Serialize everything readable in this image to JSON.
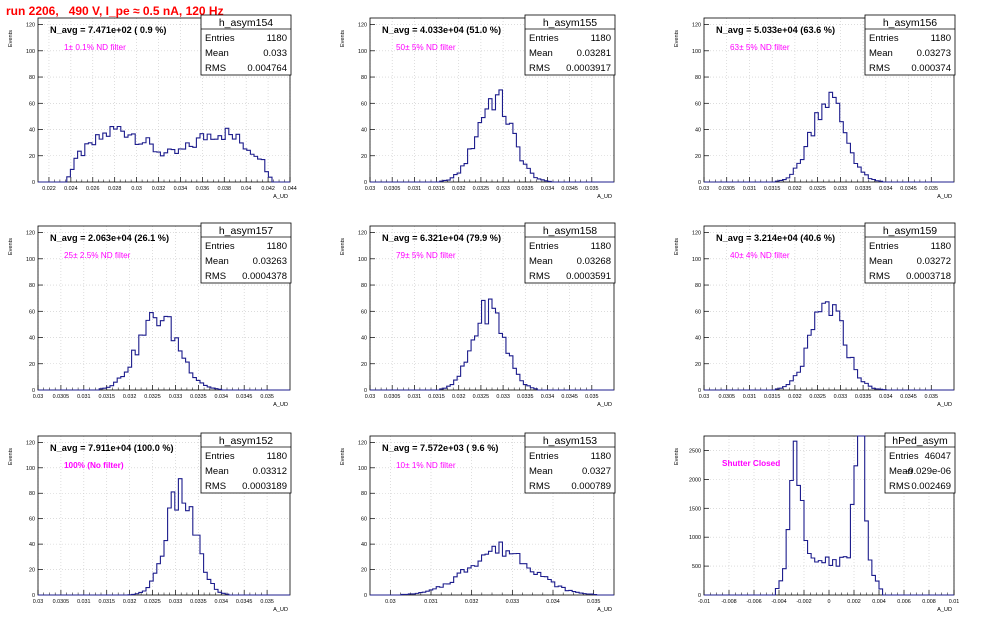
{
  "page": {
    "title": "run 2206,   490 V, I_pe ≈ 0.5 nA, 120 Hz"
  },
  "common": {
    "ylabel": "Events",
    "xlabel": "A_UD",
    "line_color": "#1c1c8c",
    "title_color": "#ff0000",
    "annotation_color": "#ff00ff"
  },
  "chart_data": [
    {
      "type": "histogram",
      "name": "h_asym154",
      "stats": {
        "Entries": "1180",
        "Mean": "0.033",
        "RMS": "0.004764"
      },
      "header": "N_avg = 7.471e+02 ( 0.9 %)",
      "annotation": "1± 0.1% ND filter",
      "xlim": [
        0.021,
        0.044
      ],
      "ylim": [
        0,
        125
      ],
      "xticks": [
        0.022,
        0.024,
        0.026,
        0.028,
        0.03,
        0.032,
        0.034,
        0.036,
        0.038,
        0.04,
        0.042,
        0.044
      ],
      "xtick_labels": [
        "0.022",
        "0.024",
        "0.026",
        "0.028",
        "0.03",
        "0.032",
        "0.034",
        "0.036",
        "0.038",
        "0.04",
        "0.042",
        "0.044"
      ],
      "yticks": [
        0,
        20,
        40,
        60,
        80,
        100,
        120
      ],
      "ytick_labels": [
        "0",
        "20",
        "40",
        "60",
        "80",
        "100",
        "120"
      ],
      "curve": {
        "shape": "bimodal_wide",
        "centers": [
          0.0285,
          0.0375
        ],
        "widths": [
          0.0023,
          0.0023
        ],
        "peaks": [
          26,
          24
        ],
        "baseline": 14,
        "range": [
          0.0235,
          0.0425
        ]
      }
    },
    {
      "type": "histogram",
      "name": "h_asym155",
      "stats": {
        "Entries": "1180",
        "Mean": "0.03281",
        "RMS": "0.0003917"
      },
      "header": "N_avg = 4.033e+04 (51.0 %)",
      "annotation": "50± 5% ND filter",
      "xlim": [
        0.03,
        0.0355
      ],
      "ylim": [
        0,
        125
      ],
      "xticks": [
        0.03,
        0.0305,
        0.031,
        0.0315,
        0.032,
        0.0325,
        0.033,
        0.0335,
        0.034,
        0.0345,
        0.035
      ],
      "xtick_labels": [
        "0.03",
        "0.0305",
        "0.031",
        "0.0315",
        "0.032",
        "0.0325",
        "0.033",
        "0.0335",
        "0.034",
        "0.0345",
        "0.035"
      ],
      "yticks": [
        0,
        20,
        40,
        60,
        80,
        100,
        120
      ],
      "ytick_labels": [
        "0",
        "20",
        "40",
        "60",
        "80",
        "100",
        "120"
      ],
      "curve": {
        "shape": "gauss",
        "centers": [
          0.03281
        ],
        "widths": [
          0.00039
        ],
        "peaks": [
          64
        ],
        "range": [
          0.0316,
          0.0341
        ]
      }
    },
    {
      "type": "histogram",
      "name": "h_asym156",
      "stats": {
        "Entries": "1180",
        "Mean": "0.03273",
        "RMS": "0.000374"
      },
      "header": "N_avg = 5.033e+04 (63.6 %)",
      "annotation": "63± 5% ND filter",
      "xlim": [
        0.03,
        0.0355
      ],
      "ylim": [
        0,
        125
      ],
      "xticks": [
        0.03,
        0.0305,
        0.031,
        0.0315,
        0.032,
        0.0325,
        0.033,
        0.0335,
        0.034,
        0.0345,
        0.035
      ],
      "xtick_labels": [
        "0.03",
        "0.0305",
        "0.031",
        "0.0315",
        "0.032",
        "0.0325",
        "0.033",
        "0.0335",
        "0.034",
        "0.0345",
        "0.035"
      ],
      "yticks": [
        0,
        20,
        40,
        60,
        80,
        100,
        120
      ],
      "ytick_labels": [
        "0",
        "20",
        "40",
        "60",
        "80",
        "100",
        "120"
      ],
      "curve": {
        "shape": "gauss",
        "centers": [
          0.03273
        ],
        "widths": [
          0.00037
        ],
        "peaks": [
          64
        ],
        "range": [
          0.0316,
          0.0339
        ]
      }
    },
    {
      "type": "histogram",
      "name": "h_asym157",
      "stats": {
        "Entries": "1180",
        "Mean": "0.03263",
        "RMS": "0.0004378"
      },
      "header": "N_avg = 2.063e+04 (26.1 %)",
      "annotation": "25± 2.5% ND filter",
      "xlim": [
        0.03,
        0.0355
      ],
      "ylim": [
        0,
        125
      ],
      "xticks": [
        0.03,
        0.0305,
        0.031,
        0.0315,
        0.032,
        0.0325,
        0.033,
        0.0335,
        0.034,
        0.0345,
        0.035
      ],
      "xtick_labels": [
        "0.03",
        "0.0305",
        "0.031",
        "0.0315",
        "0.032",
        "0.0325",
        "0.033",
        "0.0335",
        "0.034",
        "0.0345",
        "0.035"
      ],
      "yticks": [
        0,
        20,
        40,
        60,
        80,
        100,
        120
      ],
      "ytick_labels": [
        "0",
        "20",
        "40",
        "60",
        "80",
        "100",
        "120"
      ],
      "curve": {
        "shape": "gauss",
        "centers": [
          0.03263
        ],
        "widths": [
          0.00044
        ],
        "peaks": [
          56
        ],
        "range": [
          0.0313,
          0.034
        ]
      }
    },
    {
      "type": "histogram",
      "name": "h_asym158",
      "stats": {
        "Entries": "1180",
        "Mean": "0.03268",
        "RMS": "0.0003591"
      },
      "header": "N_avg = 6.321e+04 (79.9 %)",
      "annotation": "79± 5% ND filter",
      "xlim": [
        0.03,
        0.0355
      ],
      "ylim": [
        0,
        125
      ],
      "xticks": [
        0.03,
        0.0305,
        0.031,
        0.0315,
        0.032,
        0.0325,
        0.033,
        0.0335,
        0.034,
        0.0345,
        0.035
      ],
      "xtick_labels": [
        "0.03",
        "0.0305",
        "0.031",
        "0.0315",
        "0.032",
        "0.0325",
        "0.033",
        "0.0335",
        "0.034",
        "0.0345",
        "0.035"
      ],
      "yticks": [
        0,
        20,
        40,
        60,
        80,
        100,
        120
      ],
      "ytick_labels": [
        "0",
        "20",
        "40",
        "60",
        "80",
        "100",
        "120"
      ],
      "curve": {
        "shape": "gauss",
        "centers": [
          0.03268
        ],
        "widths": [
          0.00036
        ],
        "peaks": [
          62
        ],
        "range": [
          0.0316,
          0.0338
        ]
      }
    },
    {
      "type": "histogram",
      "name": "h_asym159",
      "stats": {
        "Entries": "1180",
        "Mean": "0.03272",
        "RMS": "0.0003718"
      },
      "header": "N_avg = 3.214e+04 (40.6 %)",
      "annotation": "40± 4% ND filter",
      "xlim": [
        0.03,
        0.0355
      ],
      "ylim": [
        0,
        125
      ],
      "xticks": [
        0.03,
        0.0305,
        0.031,
        0.0315,
        0.032,
        0.0325,
        0.033,
        0.0335,
        0.034,
        0.0345,
        0.035
      ],
      "xtick_labels": [
        "0.03",
        "0.0305",
        "0.031",
        "0.0315",
        "0.032",
        "0.0325",
        "0.033",
        "0.0335",
        "0.034",
        "0.0345",
        "0.035"
      ],
      "yticks": [
        0,
        20,
        40,
        60,
        80,
        100,
        120
      ],
      "ytick_labels": [
        "0",
        "20",
        "40",
        "60",
        "80",
        "100",
        "120"
      ],
      "curve": {
        "shape": "gauss",
        "centers": [
          0.03272
        ],
        "widths": [
          0.00037
        ],
        "peaks": [
          64
        ],
        "range": [
          0.0316,
          0.034
        ]
      }
    },
    {
      "type": "histogram",
      "name": "h_asym152",
      "stats": {
        "Entries": "1180",
        "Mean": "0.03312",
        "RMS": "0.0003189"
      },
      "header": "N_avg = 7.911e+04 (100.0 %)",
      "annotation": "100% (No filter)",
      "xlim": [
        0.03,
        0.0355
      ],
      "ylim": [
        0,
        125
      ],
      "xticks": [
        0.03,
        0.0305,
        0.031,
        0.0315,
        0.032,
        0.0325,
        0.033,
        0.0335,
        0.034,
        0.0345,
        0.035
      ],
      "xtick_labels": [
        "0.03",
        "0.0305",
        "0.031",
        "0.0315",
        "0.032",
        "0.0325",
        "0.033",
        "0.0335",
        "0.034",
        "0.0345",
        "0.035"
      ],
      "yticks": [
        0,
        20,
        40,
        60,
        80,
        100,
        120
      ],
      "ytick_labels": [
        "0",
        "20",
        "40",
        "60",
        "80",
        "100",
        "120"
      ],
      "curve": {
        "shape": "gauss",
        "centers": [
          0.03312
        ],
        "widths": [
          0.00032
        ],
        "peaks": [
          80
        ],
        "range": [
          0.032,
          0.0342
        ]
      }
    },
    {
      "type": "histogram",
      "name": "h_asym153",
      "stats": {
        "Entries": "1180",
        "Mean": "0.0327",
        "RMS": "0.000789"
      },
      "header": "N_avg = 7.572e+03 ( 9.6 %)",
      "annotation": "10± 1% ND filter",
      "xlim": [
        0.0295,
        0.0355
      ],
      "ylim": [
        0,
        125
      ],
      "xticks": [
        0.03,
        0.031,
        0.032,
        0.033,
        0.034,
        0.035
      ],
      "xtick_labels": [
        "0.03",
        "0.031",
        "0.032",
        "0.033",
        "0.034",
        "0.035"
      ],
      "yticks": [
        0,
        20,
        40,
        60,
        80,
        100,
        120
      ],
      "ytick_labels": [
        "0",
        "20",
        "40",
        "60",
        "80",
        "100",
        "120"
      ],
      "curve": {
        "shape": "gauss",
        "centers": [
          0.0327
        ],
        "widths": [
          0.00079
        ],
        "peaks": [
          36
        ],
        "range": [
          0.0303,
          0.0351
        ]
      }
    },
    {
      "type": "histogram",
      "name": "hPed_asym",
      "stats": {
        "Entries": "46047",
        "Mean": "-9.029e-06",
        "RMS": "0.002469"
      },
      "header": "",
      "annotation": "Shutter Closed",
      "xlim": [
        -0.01,
        0.01
      ],
      "ylim": [
        0,
        2750
      ],
      "xticks": [
        -0.01,
        -0.008,
        -0.006,
        -0.004,
        -0.002,
        0,
        0.002,
        0.004,
        0.006,
        0.008,
        0.01
      ],
      "xtick_labels": [
        "-0.01",
        "-0.008",
        "-0.006",
        "-0.004",
        "-0.002",
        "0",
        "0.002",
        "0.004",
        "0.006",
        "0.008",
        "0.01"
      ],
      "yticks": [
        0,
        500,
        1000,
        1500,
        2000,
        2500
      ],
      "ytick_labels": [
        "0",
        "500",
        "1000",
        "1500",
        "2000",
        "2500"
      ],
      "curve": {
        "shape": "double_peak",
        "centers": [
          -0.0027,
          0.0025
        ],
        "widths": [
          0.0004,
          0.0004
        ],
        "peaks": [
          2150,
          2650
        ],
        "baseline": 600,
        "range": [
          -0.0043,
          0.0043
        ]
      }
    }
  ]
}
